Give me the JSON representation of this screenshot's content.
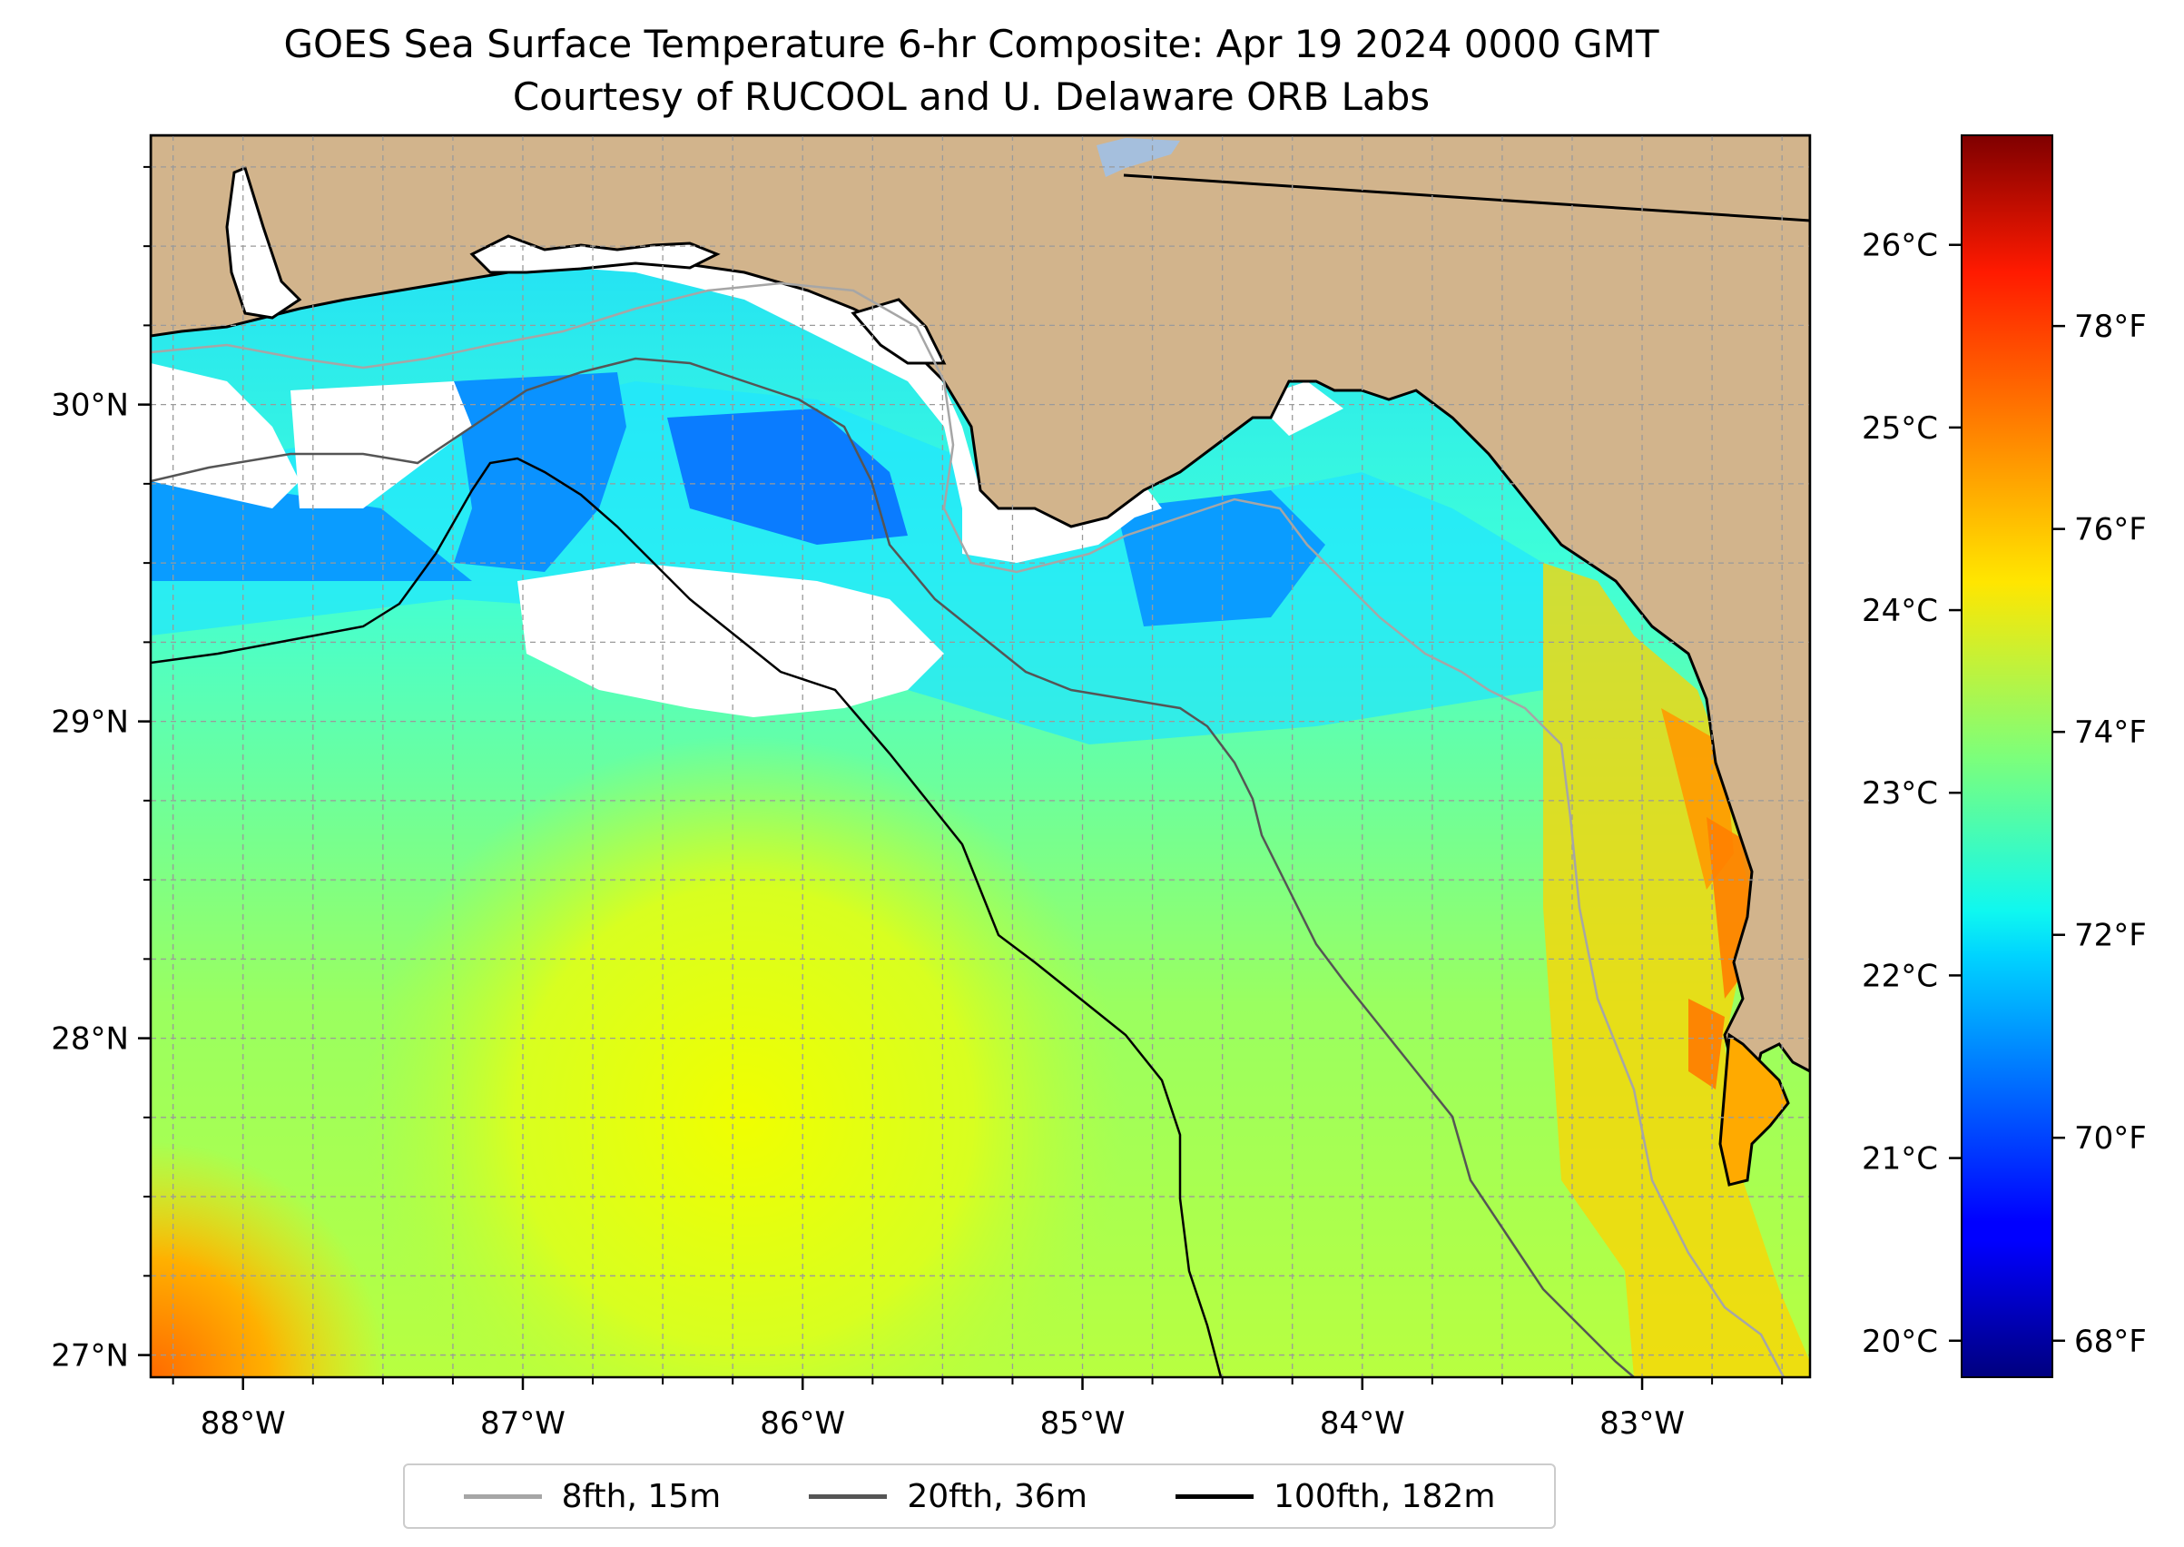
{
  "title": {
    "line1": "GOES Sea Surface Temperature 6-hr Composite: Apr 19 2024 0000 GMT",
    "line2": "Courtesy of RUCOOL and U. Delaware ORB Labs"
  },
  "map": {
    "lon_range": [
      -88.33,
      -82.4
    ],
    "lat_range": [
      26.93,
      30.85
    ],
    "lon_ticks": [
      {
        "value": -88,
        "label": "88°W"
      },
      {
        "value": -87,
        "label": "87°W"
      },
      {
        "value": -86,
        "label": "86°W"
      },
      {
        "value": -85,
        "label": "85°W"
      },
      {
        "value": -84,
        "label": "84°W"
      },
      {
        "value": -83,
        "label": "83°W"
      }
    ],
    "lat_ticks": [
      {
        "value": 27,
        "label": "27°N"
      },
      {
        "value": 28,
        "label": "28°N"
      },
      {
        "value": 29,
        "label": "29°N"
      },
      {
        "value": 30,
        "label": "30°N"
      }
    ],
    "gridlines": "on",
    "colors": {
      "land": "#d2b48c",
      "cloud_no_data": "#ffffff",
      "lake": "#a5bfdd",
      "coastline": "#000000"
    }
  },
  "legend": {
    "items": [
      {
        "label": "8fth, 15m",
        "color": "#a6a6a6"
      },
      {
        "label": "20fth, 36m",
        "color": "#555555"
      },
      {
        "label": "100fth, 182m",
        "color": "#000000"
      }
    ]
  },
  "colorbar": {
    "colormap": "jet",
    "range_c": [
      19.8,
      26.6
    ],
    "celsius_ticks": [
      {
        "value": 20,
        "label": "20°C"
      },
      {
        "value": 21,
        "label": "21°C"
      },
      {
        "value": 22,
        "label": "22°C"
      },
      {
        "value": 23,
        "label": "23°C"
      },
      {
        "value": 24,
        "label": "24°C"
      },
      {
        "value": 25,
        "label": "25°C"
      },
      {
        "value": 26,
        "label": "26°C"
      }
    ],
    "fahrenheit_ticks": [
      {
        "value": 68,
        "label": "68°F"
      },
      {
        "value": 70,
        "label": "70°F"
      },
      {
        "value": 72,
        "label": "72°F"
      },
      {
        "value": 74,
        "label": "74°F"
      },
      {
        "value": 76,
        "label": "76°F"
      },
      {
        "value": 78,
        "label": "78°F"
      }
    ]
  }
}
